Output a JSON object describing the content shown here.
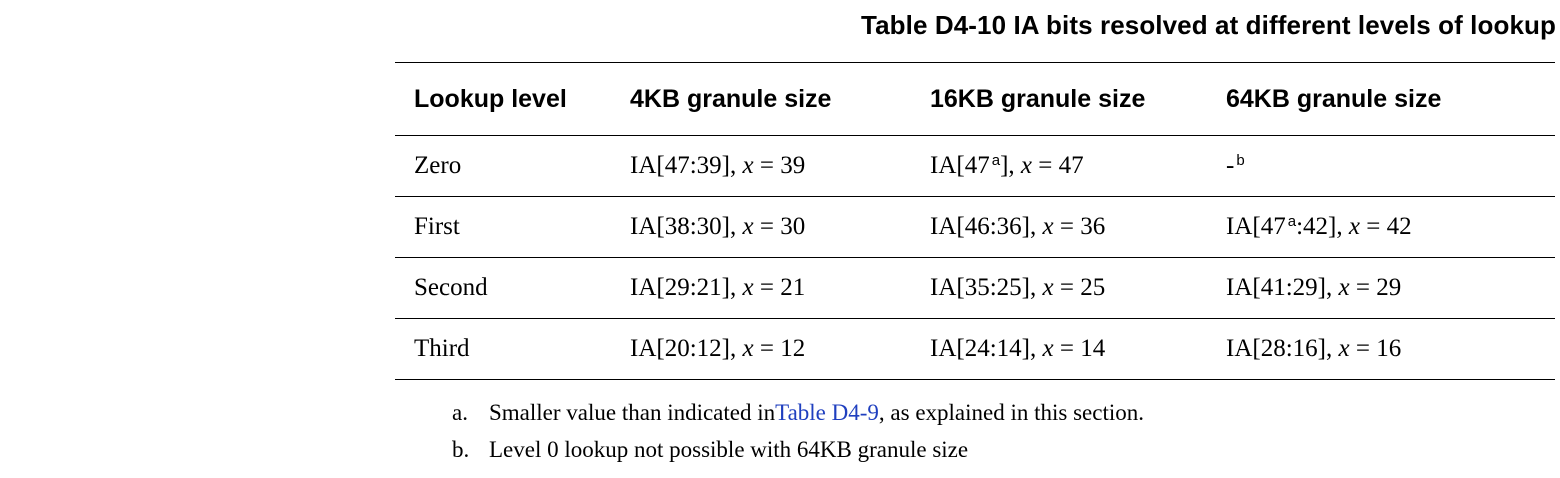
{
  "caption": "Table D4-10 IA bits resolved at different levels of lookup",
  "table": {
    "headers": [
      "Lookup level",
      "4KB granule size",
      "16KB granule size",
      "64KB granule size"
    ],
    "rows": [
      {
        "level": "Zero",
        "g4k": {
          "ia": "IA[47:39]",
          "x": "39"
        },
        "g16k": {
          "ia_pre": "IA[47",
          "sup": "a",
          "ia_post": "]",
          "x": "47"
        },
        "g64k": {
          "dash": "-",
          "sup": "b"
        }
      },
      {
        "level": "First",
        "g4k": {
          "ia": "IA[38:30]",
          "x": "30"
        },
        "g16k": {
          "ia": "IA[46:36]",
          "x": "36"
        },
        "g64k": {
          "ia_pre": "IA[47",
          "sup": "a",
          "ia_post": ":42]",
          "x": "42"
        }
      },
      {
        "level": "Second",
        "g4k": {
          "ia": "IA[29:21]",
          "x": "21"
        },
        "g16k": {
          "ia": "IA[35:25]",
          "x": "25"
        },
        "g64k": {
          "ia": "IA[41:29]",
          "x": "29"
        }
      },
      {
        "level": "Third",
        "g4k": {
          "ia": "IA[20:12]",
          "x": "12"
        },
        "g16k": {
          "ia": "IA[24:14]",
          "x": "14"
        },
        "g64k": {
          "ia": "IA[28:16]",
          "x": "16"
        }
      }
    ],
    "var_prefix": ", ",
    "var_name": "x",
    "var_eq": " = "
  },
  "notes": {
    "a": {
      "marker": "a.",
      "pre": "Smaller value than indicated in ",
      "link": "Table D4-9",
      "post": ", as explained in this section."
    },
    "b": {
      "marker": "b.",
      "text": "Level 0 lookup not possible with 64KB granule size"
    }
  }
}
